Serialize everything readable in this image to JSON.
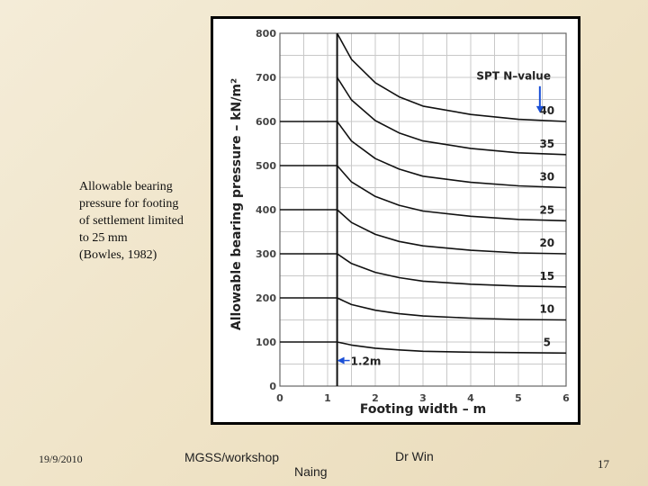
{
  "slide": {
    "caption_lines": [
      "Allowable bearing",
      "pressure for footing",
      "of settlement limited",
      "to 25 mm",
      "(Bowles, 1982)"
    ],
    "footer": {
      "date": "19/9/2010",
      "workshop": "MGSS/workshop",
      "author_first": "Dr Win",
      "author_last": "Naing",
      "page_number": "17"
    }
  },
  "chart_data": {
    "type": "line",
    "title": "",
    "xlabel": "Footing width  –  m",
    "ylabel": "Allowable  bearing  pressure  –  kN/m²",
    "xlim": [
      0,
      6
    ],
    "ylim": [
      0,
      800
    ],
    "x_ticks": [
      "0",
      "1",
      "2",
      "3",
      "4",
      "5",
      "6"
    ],
    "y_ticks": [
      "0",
      "100",
      "200",
      "300",
      "400",
      "500",
      "600",
      "700",
      "800"
    ],
    "grid": true,
    "legend_title": "SPT  N–value",
    "annotation": "1.2m",
    "series": [
      {
        "name": "5",
        "x": [
          0,
          1.2,
          1.2,
          1.5,
          2,
          2.5,
          3,
          4,
          5,
          6
        ],
        "y": [
          100,
          100,
          100,
          93,
          86,
          82,
          79,
          77,
          76,
          75
        ]
      },
      {
        "name": "10",
        "x": [
          0,
          1.2,
          1.2,
          1.5,
          2,
          2.5,
          3,
          4,
          5,
          6
        ],
        "y": [
          200,
          200,
          200,
          185,
          172,
          164,
          159,
          154,
          151,
          150
        ]
      },
      {
        "name": "15",
        "x": [
          0,
          1.2,
          1.2,
          1.5,
          2,
          2.5,
          3,
          4,
          5,
          6
        ],
        "y": [
          300,
          300,
          300,
          278,
          258,
          246,
          238,
          231,
          227,
          225
        ]
      },
      {
        "name": "20",
        "x": [
          0,
          1.2,
          1.2,
          1.5,
          2,
          2.5,
          3,
          4,
          5,
          6
        ],
        "y": [
          400,
          400,
          400,
          371,
          344,
          328,
          318,
          308,
          302,
          300
        ]
      },
      {
        "name": "25",
        "x": [
          0,
          1.2,
          1.2,
          1.5,
          2,
          2.5,
          3,
          4,
          5,
          6
        ],
        "y": [
          500,
          500,
          500,
          463,
          430,
          410,
          397,
          385,
          378,
          375
        ]
      },
      {
        "name": "30",
        "x": [
          0,
          1.2,
          1.2,
          1.5,
          2,
          2.5,
          3,
          4,
          5,
          6
        ],
        "y": [
          600,
          600,
          600,
          556,
          516,
          492,
          476,
          462,
          454,
          450
        ]
      },
      {
        "name": "35",
        "x": [
          1.2,
          1.5,
          2,
          2.5,
          3,
          4,
          5,
          6
        ],
        "y": [
          700,
          649,
          602,
          574,
          556,
          539,
          529,
          525
        ]
      },
      {
        "name": "40",
        "x": [
          1.2,
          1.5,
          2,
          2.5,
          3,
          4,
          5,
          6
        ],
        "y": [
          800,
          741,
          688,
          656,
          635,
          616,
          605,
          600
        ]
      }
    ]
  }
}
